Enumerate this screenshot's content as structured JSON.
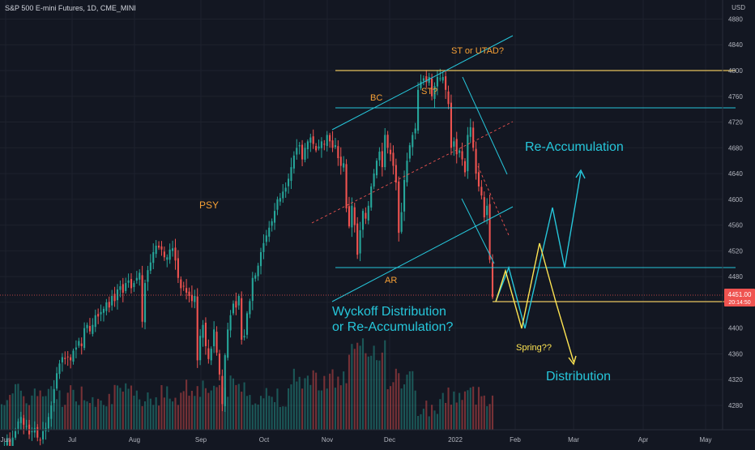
{
  "header": {
    "symbol": "S&P 500 E-mini Futures, 1D, CME_MINI",
    "currency": "USD"
  },
  "colors": {
    "background": "#131722",
    "up": "#26a69a",
    "down": "#ef5350",
    "annotation_orange": "#f7a035",
    "annotation_cyan": "#26c6da",
    "line_yellow": "#ffe552",
    "line_gold": "#e6c35c",
    "price_tag": "#ef5350"
  },
  "chart_data": {
    "type": "candlestick",
    "y_axis": {
      "ticks": [
        4280,
        4320,
        4360,
        4400,
        4440,
        4480,
        4520,
        4560,
        4600,
        4640,
        4680,
        4720,
        4760,
        4800,
        4840,
        4880
      ],
      "ylim": [
        4240,
        4900
      ]
    },
    "x_axis": {
      "tick_labels": [
        "Jun",
        "Jul",
        "Aug",
        "Sep",
        "Oct",
        "Nov",
        "Dec",
        "2022",
        "Feb",
        "Mar",
        "Apr",
        "May"
      ]
    },
    "current_price": {
      "value": "4451.00",
      "countdown": "20:14:50"
    },
    "closes_approx": [
      4200,
      4215,
      4225,
      4205,
      4230,
      4240,
      4255,
      4262,
      4250,
      4248,
      4235,
      4240,
      4245,
      4230,
      4226,
      4240,
      4245,
      4262,
      4280,
      4305,
      4330,
      4345,
      4355,
      4352,
      4355,
      4350,
      4365,
      4370,
      4380,
      4372,
      4400,
      4405,
      4395,
      4405,
      4420,
      4418,
      4425,
      4430,
      4440,
      4432,
      4450,
      4442,
      4460,
      4465,
      4455,
      4470,
      4474,
      4462,
      4470,
      4478,
      4486,
      4410,
      4470,
      4490,
      4502,
      4518,
      4528,
      4525,
      4522,
      4510,
      4510,
      4522,
      4524,
      4505,
      4478,
      4462,
      4465,
      4455,
      4450,
      4442,
      4450,
      4350,
      4388,
      4405,
      4372,
      4352,
      4368,
      4398,
      4362,
      4328,
      4282,
      4358,
      4398,
      4420,
      4438,
      4432,
      4450,
      4382,
      4388,
      4423,
      4442,
      4478,
      4482,
      4497,
      4518,
      4532,
      4544,
      4556,
      4566,
      4582,
      4600,
      4602,
      4612,
      4618,
      4632,
      4650,
      4668,
      4680,
      4684,
      4662,
      4680,
      4690,
      4696,
      4686,
      4676,
      4682,
      4690,
      4686,
      4700,
      4690,
      4680,
      4684,
      4664,
      4652,
      4656,
      4586,
      4558,
      4590,
      4560,
      4514,
      4552,
      4582,
      4570,
      4590,
      4620,
      4640,
      4660,
      4674,
      4650,
      4700,
      4680,
      4670,
      4652,
      4626,
      4548,
      4580,
      4630,
      4660,
      4684,
      4700,
      4710,
      4770,
      4783,
      4788,
      4782,
      4790,
      4760,
      4776,
      4790,
      4788,
      4790,
      4770,
      4748,
      4680,
      4690,
      4670,
      4676,
      4662,
      4642,
      4700,
      4712,
      4680,
      4640,
      4620,
      4606,
      4572,
      4590,
      4506,
      4448
    ]
  },
  "annotations": {
    "psy": "PSY",
    "bc": "BC",
    "st": "ST?",
    "st_utad": "ST or UTAD?",
    "ar": "AR",
    "spring": "Spring??",
    "wyckoff_line1": "Wyckoff Distribution",
    "wyckoff_line2": "or Re-Accumulation?",
    "reaccumulation": "Re-Accumulation",
    "distribution": "Distribution"
  }
}
